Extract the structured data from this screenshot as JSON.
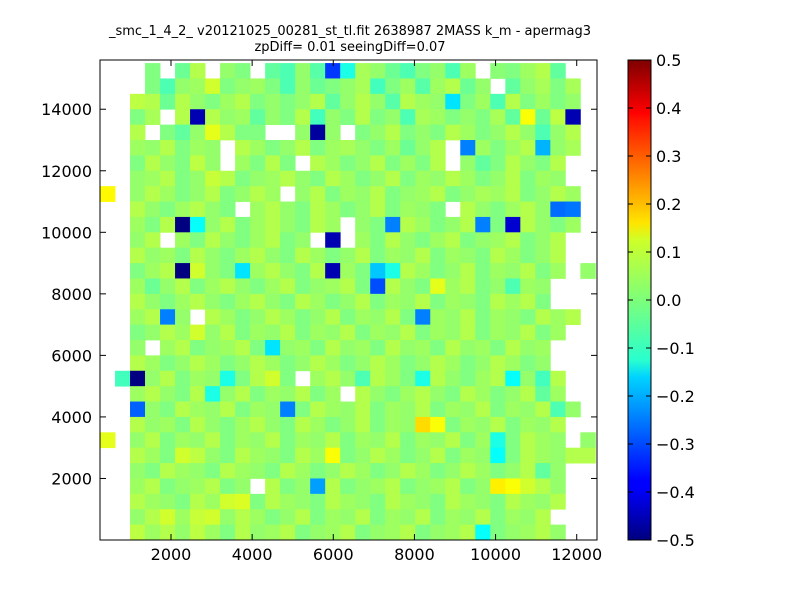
{
  "figure": {
    "title_line1": "_smc_1_4_2_ v20121025_00281_st_tl.fit 2638987 2MASS k_m - apermag3",
    "title_line2": "zpDiff= 0.01 seeingDiff=0.07"
  },
  "chart_data": {
    "type": "heatmap",
    "title": "_smc_1_4_2_ v20121025_00281_st_tl.fit 2638987 2MASS k_m - apermag3 zpDiff= 0.01 seeingDiff=0.07",
    "xlabel": "",
    "ylabel": "",
    "xlim": [
      250,
      12500
    ],
    "ylim": [
      0,
      15600
    ],
    "x_ticks": [
      2000,
      4000,
      6000,
      8000,
      10000,
      12000
    ],
    "y_ticks": [
      2000,
      4000,
      6000,
      8000,
      10000,
      12000,
      14000
    ],
    "colorbar": {
      "colormap": "jet",
      "range": [
        -0.5,
        0.5
      ],
      "ticks": [
        -0.5,
        -0.4,
        -0.3,
        -0.2,
        -0.1,
        0.0,
        0.1,
        0.2,
        0.3,
        0.4,
        0.5
      ],
      "tick_labels": [
        "−0.5",
        "−0.4",
        "−0.3",
        "−0.2",
        "−0.1",
        "0.0",
        "0.1",
        "0.2",
        "0.3",
        "0.4",
        "0.5"
      ]
    },
    "grid": false,
    "bins": {
      "x_start": 250,
      "x_step": 370,
      "y_start": 0,
      "y_step": 500,
      "n_cols": 33,
      "n_rows": 31
    },
    "cells_note": "rows listed top (y bin 30) to bottom (y bin 0); null = empty bin",
    "cells": [
      [
        null,
        null,
        null,
        0.0,
        null,
        -0.02,
        0.05,
        null,
        0.02,
        0.0,
        null,
        -0.03,
        -0.05,
        0.02,
        -0.04,
        -0.32,
        -0.1,
        0.04,
        0.02,
        -0.02,
        -0.05,
        0.0,
        0.02,
        -0.05,
        0.03,
        null,
        0.01,
        0.0,
        0.03,
        0.05,
        -0.03,
        null,
        null
      ],
      [
        null,
        null,
        null,
        0.0,
        -0.05,
        0.02,
        0.03,
        0.08,
        0.0,
        0.02,
        0.03,
        0.0,
        -0.05,
        0.02,
        -0.02,
        0.0,
        0.02,
        0.04,
        -0.06,
        0.0,
        0.03,
        -0.04,
        0.03,
        0.05,
        -0.02,
        0.02,
        null,
        -0.03,
        0.02,
        0.04,
        0.0,
        0.04,
        null
      ],
      [
        null,
        null,
        0.06,
        0.05,
        -0.02,
        0.05,
        0.02,
        0.0,
        0.03,
        0.05,
        0.0,
        0.02,
        0.0,
        0.02,
        0.05,
        -0.03,
        0.02,
        0.05,
        0.02,
        -0.04,
        0.05,
        0.03,
        0.02,
        -0.15,
        0.0,
        0.03,
        -0.05,
        0.05,
        0.0,
        0.03,
        0.0,
        0.02,
        null
      ],
      [
        null,
        null,
        0.0,
        0.04,
        null,
        0.05,
        -0.45,
        0.05,
        0.02,
        0.03,
        -0.03,
        0.02,
        0.0,
        0.05,
        -0.06,
        0.02,
        0.0,
        0.05,
        0.0,
        0.02,
        -0.05,
        0.04,
        0.03,
        0.0,
        0.02,
        0.0,
        0.04,
        -0.03,
        0.12,
        -0.02,
        0.06,
        -0.45,
        null
      ],
      [
        null,
        null,
        0.05,
        null,
        0.0,
        -0.03,
        0.02,
        0.1,
        0.05,
        0.0,
        0.0,
        null,
        null,
        0.02,
        -0.47,
        0.02,
        null,
        0.0,
        0.02,
        0.05,
        0.0,
        0.02,
        0.0,
        0.05,
        0.03,
        0.0,
        0.02,
        0.05,
        0.02,
        -0.05,
        0.02,
        0.05,
        null
      ],
      [
        null,
        null,
        0.03,
        0.02,
        0.05,
        0.0,
        0.03,
        0.02,
        null,
        0.05,
        0.03,
        0.0,
        0.02,
        0.05,
        0.0,
        0.03,
        0.04,
        0.02,
        0.0,
        0.03,
        -0.02,
        0.02,
        0.05,
        null,
        -0.25,
        0.03,
        0.0,
        0.03,
        0.05,
        -0.2,
        0.02,
        0.04,
        null
      ],
      [
        null,
        null,
        0.0,
        0.05,
        0.02,
        0.0,
        0.06,
        0.02,
        null,
        0.03,
        0.0,
        0.05,
        0.0,
        null,
        0.05,
        0.03,
        0.0,
        0.02,
        0.05,
        0.0,
        0.03,
        0.0,
        0.05,
        null,
        0.02,
        -0.03,
        0.0,
        0.05,
        0.02,
        0.0,
        0.05,
        null,
        null
      ],
      [
        null,
        null,
        0.02,
        0.03,
        0.05,
        0.0,
        0.02,
        0.07,
        0.05,
        0.0,
        0.02,
        0.03,
        0.05,
        0.02,
        0.0,
        0.05,
        0.03,
        0.0,
        0.02,
        0.05,
        0.0,
        0.03,
        0.02,
        0.05,
        0.03,
        0.0,
        0.02,
        0.05,
        0.0,
        0.03,
        0.02,
        null,
        null
      ],
      [
        0.13,
        null,
        0.02,
        0.05,
        0.03,
        0.0,
        0.02,
        0.05,
        0.0,
        0.02,
        0.05,
        0.03,
        null,
        0.02,
        0.05,
        0.0,
        0.03,
        0.02,
        0.05,
        0.0,
        0.02,
        0.03,
        0.05,
        0.0,
        0.02,
        0.04,
        0.03,
        0.05,
        0.0,
        0.02,
        0.05,
        0.03,
        null
      ],
      [
        null,
        null,
        0.05,
        0.02,
        0.0,
        0.03,
        0.05,
        0.02,
        0.0,
        null,
        0.03,
        0.05,
        0.02,
        0.0,
        0.05,
        0.03,
        0.0,
        0.02,
        0.05,
        0.0,
        0.03,
        0.02,
        0.0,
        null,
        0.05,
        0.02,
        0.0,
        0.03,
        0.05,
        0.02,
        -0.27,
        -0.26,
        null
      ],
      [
        null,
        null,
        0.03,
        0.0,
        0.05,
        -0.5,
        -0.12,
        0.02,
        0.05,
        0.0,
        0.03,
        0.05,
        0.02,
        0.0,
        0.05,
        0.03,
        null,
        0.02,
        0.0,
        -0.25,
        0.05,
        0.03,
        0.0,
        0.02,
        0.05,
        -0.25,
        0.0,
        -0.42,
        0.05,
        0.02,
        0.0,
        0.03,
        null
      ],
      [
        null,
        null,
        0.02,
        0.05,
        null,
        0.03,
        0.0,
        0.05,
        0.02,
        0.0,
        0.03,
        0.05,
        0.0,
        0.02,
        null,
        -0.45,
        null,
        0.03,
        0.0,
        0.05,
        0.02,
        0.0,
        0.03,
        0.05,
        0.0,
        0.02,
        0.03,
        0.05,
        0.0,
        0.02,
        0.05,
        null,
        null
      ],
      [
        null,
        null,
        0.05,
        0.02,
        0.03,
        0.0,
        0.05,
        0.02,
        0.0,
        0.03,
        0.05,
        0.02,
        0.0,
        0.05,
        0.03,
        0.0,
        0.02,
        0.05,
        0.0,
        0.03,
        0.02,
        0.05,
        0.0,
        0.03,
        0.02,
        0.0,
        0.05,
        0.03,
        0.0,
        0.02,
        0.05,
        null,
        null
      ],
      [
        null,
        null,
        0.0,
        0.03,
        0.05,
        -0.5,
        0.08,
        0.02,
        0.0,
        -0.15,
        0.03,
        0.05,
        0.02,
        0.0,
        0.05,
        -0.45,
        0.03,
        0.0,
        -0.18,
        -0.1,
        0.05,
        0.03,
        0.0,
        0.02,
        0.05,
        0.0,
        0.03,
        0.02,
        0.05,
        0.0,
        0.03,
        null,
        0.02
      ],
      [
        null,
        null,
        0.03,
        -0.02,
        0.02,
        0.05,
        0.0,
        0.03,
        0.05,
        0.02,
        0.0,
        0.03,
        0.05,
        0.0,
        0.02,
        0.03,
        0.05,
        0.0,
        -0.3,
        0.05,
        0.02,
        0.0,
        0.1,
        0.03,
        0.05,
        0.0,
        0.02,
        -0.05,
        0.03,
        0.02,
        null,
        null,
        null
      ],
      [
        null,
        null,
        0.05,
        0.02,
        0.0,
        0.03,
        0.05,
        0.02,
        0.0,
        0.03,
        0.05,
        0.02,
        0.0,
        0.05,
        0.03,
        0.0,
        0.02,
        0.05,
        0.0,
        0.03,
        0.02,
        0.05,
        0.0,
        0.03,
        0.02,
        0.0,
        0.05,
        0.03,
        0.05,
        0.0,
        null,
        null,
        null
      ],
      [
        null,
        null,
        0.03,
        0.05,
        -0.25,
        0.02,
        null,
        0.05,
        0.03,
        0.0,
        0.02,
        0.05,
        0.03,
        0.0,
        0.02,
        0.05,
        0.0,
        0.03,
        0.02,
        0.05,
        0.0,
        -0.25,
        0.03,
        0.02,
        0.05,
        0.0,
        0.03,
        0.02,
        0.0,
        0.05,
        0.03,
        0.05,
        null
      ],
      [
        null,
        null,
        0.0,
        0.02,
        0.05,
        0.03,
        0.08,
        0.02,
        0.05,
        0.0,
        0.03,
        0.02,
        0.05,
        0.0,
        0.03,
        0.02,
        0.05,
        0.0,
        0.03,
        0.02,
        0.05,
        0.0,
        0.03,
        0.02,
        0.05,
        0.0,
        0.03,
        0.02,
        0.05,
        0.0,
        0.03,
        null,
        null
      ],
      [
        null,
        null,
        0.02,
        null,
        0.03,
        0.05,
        0.0,
        0.02,
        0.03,
        0.05,
        0.0,
        -0.15,
        0.02,
        0.03,
        0.0,
        0.05,
        0.02,
        0.03,
        0.0,
        0.05,
        0.02,
        0.03,
        0.0,
        0.05,
        0.02,
        0.03,
        0.0,
        0.05,
        0.02,
        0.03,
        null,
        null,
        null
      ],
      [
        null,
        null,
        0.05,
        0.03,
        0.0,
        0.02,
        0.05,
        0.03,
        0.0,
        0.02,
        0.05,
        0.03,
        0.0,
        0.02,
        0.05,
        0.03,
        0.0,
        0.02,
        0.05,
        0.03,
        0.0,
        0.02,
        0.05,
        0.03,
        0.0,
        0.02,
        0.05,
        0.03,
        0.0,
        0.02,
        null,
        null,
        null
      ],
      [
        null,
        -0.06,
        -0.5,
        0.02,
        0.05,
        0.0,
        0.03,
        0.02,
        -0.1,
        0.0,
        0.05,
        0.08,
        0.0,
        null,
        0.03,
        0.05,
        0.02,
        -0.05,
        0.05,
        0.03,
        0.0,
        -0.1,
        0.05,
        0.02,
        0.0,
        0.03,
        0.05,
        -0.12,
        0.02,
        -0.06,
        0.05,
        null,
        null
      ],
      [
        null,
        null,
        0.03,
        0.05,
        0.02,
        0.0,
        0.05,
        -0.1,
        0.02,
        0.05,
        0.0,
        0.03,
        0.02,
        0.05,
        0.0,
        0.03,
        null,
        0.05,
        0.02,
        0.0,
        0.03,
        0.05,
        0.02,
        0.0,
        0.05,
        0.03,
        0.0,
        0.02,
        0.05,
        -0.03,
        0.03,
        null,
        null
      ],
      [
        null,
        null,
        -0.28,
        0.02,
        0.0,
        0.05,
        0.03,
        0.02,
        0.05,
        0.0,
        0.03,
        0.02,
        -0.25,
        0.0,
        0.05,
        0.03,
        0.02,
        0.05,
        0.0,
        0.03,
        0.02,
        0.05,
        0.0,
        0.03,
        0.02,
        0.05,
        0.0,
        0.03,
        0.02,
        0.05,
        -0.05,
        0.02,
        null
      ],
      [
        null,
        null,
        0.05,
        0.02,
        0.03,
        0.0,
        0.05,
        0.02,
        0.0,
        0.03,
        0.05,
        0.02,
        0.0,
        0.05,
        0.03,
        0.0,
        0.02,
        0.05,
        0.0,
        0.03,
        0.02,
        0.16,
        0.12,
        0.0,
        0.03,
        0.02,
        0.05,
        0.0,
        0.03,
        0.02,
        0.05,
        null,
        null
      ],
      [
        0.1,
        null,
        0.02,
        0.05,
        0.0,
        0.03,
        0.02,
        0.05,
        0.0,
        0.03,
        0.02,
        0.05,
        0.0,
        0.03,
        0.02,
        0.05,
        0.0,
        0.03,
        0.02,
        0.05,
        0.0,
        0.03,
        0.02,
        0.05,
        0.0,
        0.03,
        -0.1,
        0.0,
        0.05,
        0.03,
        0.02,
        null,
        0.02
      ],
      [
        null,
        null,
        0.05,
        0.03,
        0.0,
        0.08,
        0.06,
        0.02,
        0.0,
        0.05,
        0.03,
        0.02,
        0.0,
        0.05,
        0.03,
        0.12,
        0.0,
        0.02,
        0.05,
        0.03,
        0.0,
        0.02,
        0.05,
        0.0,
        0.03,
        0.02,
        -0.12,
        0.0,
        0.05,
        0.03,
        0.02,
        0.05,
        0.05
      ],
      [
        null,
        null,
        0.02,
        0.0,
        0.05,
        0.03,
        0.02,
        0.0,
        0.05,
        0.03,
        0.02,
        0.0,
        0.05,
        0.03,
        0.0,
        0.02,
        0.05,
        0.03,
        0.0,
        0.02,
        0.05,
        0.03,
        0.0,
        0.02,
        0.05,
        0.03,
        0.0,
        0.02,
        0.05,
        -0.03,
        0.02,
        null,
        null
      ],
      [
        null,
        null,
        0.03,
        0.05,
        0.0,
        0.02,
        0.03,
        0.05,
        0.0,
        0.02,
        null,
        0.05,
        0.0,
        0.02,
        -0.22,
        0.05,
        0.0,
        0.02,
        0.03,
        0.05,
        0.0,
        0.02,
        0.03,
        0.05,
        0.0,
        0.02,
        0.14,
        0.12,
        0.08,
        0.05,
        0.02,
        null,
        null
      ],
      [
        null,
        null,
        0.05,
        0.03,
        0.02,
        0.0,
        0.05,
        0.03,
        0.08,
        0.09,
        0.0,
        0.05,
        0.03,
        0.02,
        0.0,
        0.05,
        0.03,
        0.02,
        0.0,
        0.05,
        0.03,
        0.02,
        0.0,
        0.05,
        0.03,
        0.02,
        0.0,
        0.05,
        0.03,
        0.02,
        0.05,
        null,
        null
      ],
      [
        null,
        null,
        0.02,
        0.05,
        0.08,
        0.03,
        0.07,
        0.08,
        0.02,
        0.05,
        0.03,
        0.0,
        0.02,
        0.05,
        0.0,
        0.03,
        0.02,
        0.05,
        0.0,
        0.03,
        0.02,
        0.05,
        0.0,
        0.03,
        0.02,
        0.05,
        0.0,
        0.03,
        0.02,
        0.05,
        null,
        null,
        null
      ],
      [
        null,
        null,
        0.06,
        0.03,
        0.05,
        0.02,
        0.06,
        0.03,
        0.0,
        0.05,
        0.02,
        0.03,
        0.05,
        0.0,
        0.02,
        0.03,
        0.05,
        0.0,
        0.02,
        0.03,
        0.05,
        0.0,
        0.02,
        0.03,
        0.05,
        -0.12,
        0.0,
        0.02,
        0.03,
        0.05,
        0.02,
        null,
        null
      ]
    ]
  }
}
